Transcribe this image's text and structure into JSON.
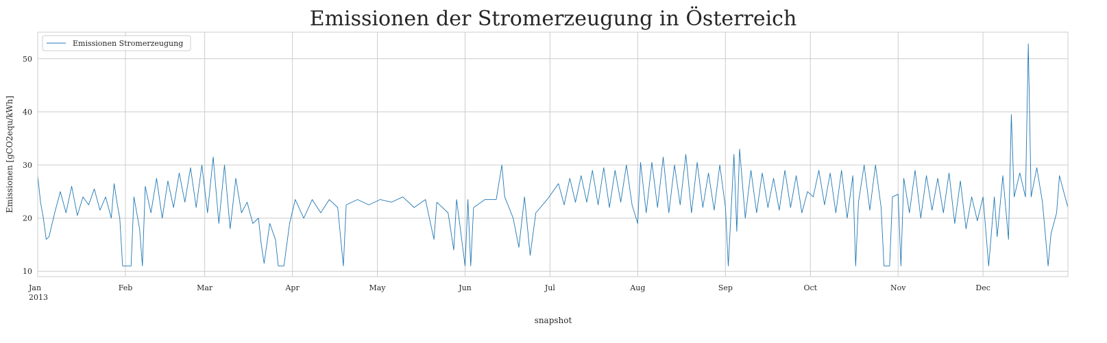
{
  "chart_data": {
    "type": "line",
    "title": "Emissionen der Stromerzeugung in Österreich",
    "xlabel": "snapshot",
    "ylabel": "Emissionen [gCO2equ/kWh]",
    "xlim": [
      "2013-01-01",
      "2013-12-31"
    ],
    "ylim": [
      9,
      55
    ],
    "yticks": [
      10,
      20,
      30,
      40,
      50
    ],
    "xticks": [
      {
        "date": "2013-01-01",
        "label": "Jan",
        "sublabel": "2013"
      },
      {
        "date": "2013-02-01",
        "label": "Feb"
      },
      {
        "date": "2013-03-01",
        "label": "Mar"
      },
      {
        "date": "2013-04-01",
        "label": "Apr"
      },
      {
        "date": "2013-05-01",
        "label": "May"
      },
      {
        "date": "2013-06-01",
        "label": "Jun"
      },
      {
        "date": "2013-07-01",
        "label": "Jul"
      },
      {
        "date": "2013-08-01",
        "label": "Aug"
      },
      {
        "date": "2013-09-01",
        "label": "Sep"
      },
      {
        "date": "2013-10-01",
        "label": "Oct"
      },
      {
        "date": "2013-11-01",
        "label": "Nov"
      },
      {
        "date": "2013-12-01",
        "label": "Dec"
      }
    ],
    "grid": true,
    "legend_position": "top-left",
    "series": [
      {
        "name": "Emissionen Stromerzeugung",
        "color": "#1f77b4",
        "points": [
          [
            "2013-01-01",
            28.0
          ],
          [
            "2013-01-02",
            23.0
          ],
          [
            "2013-01-03",
            20.0
          ],
          [
            "2013-01-04",
            16.0
          ],
          [
            "2013-01-05",
            16.5
          ],
          [
            "2013-01-07",
            21.0
          ],
          [
            "2013-01-09",
            25.0
          ],
          [
            "2013-01-11",
            21.0
          ],
          [
            "2013-01-13",
            26.0
          ],
          [
            "2013-01-15",
            20.5
          ],
          [
            "2013-01-17",
            24.0
          ],
          [
            "2013-01-19",
            22.5
          ],
          [
            "2013-01-21",
            25.5
          ],
          [
            "2013-01-23",
            21.5
          ],
          [
            "2013-01-25",
            24.0
          ],
          [
            "2013-01-27",
            20.0
          ],
          [
            "2013-01-28",
            26.5
          ],
          [
            "2013-01-29",
            23.0
          ],
          [
            "2013-01-30",
            20.0
          ],
          [
            "2013-01-31",
            11.0
          ],
          [
            "2013-02-03",
            11.0
          ],
          [
            "2013-02-04",
            24.0
          ],
          [
            "2013-02-06",
            18.0
          ],
          [
            "2013-02-07",
            11.0
          ],
          [
            "2013-02-08",
            26.0
          ],
          [
            "2013-02-10",
            21.0
          ],
          [
            "2013-02-12",
            27.5
          ],
          [
            "2013-02-14",
            20.0
          ],
          [
            "2013-02-16",
            27.0
          ],
          [
            "2013-02-18",
            22.0
          ],
          [
            "2013-02-20",
            28.5
          ],
          [
            "2013-02-22",
            23.0
          ],
          [
            "2013-02-24",
            29.5
          ],
          [
            "2013-02-26",
            22.0
          ],
          [
            "2013-02-28",
            30.0
          ],
          [
            "2013-03-02",
            21.0
          ],
          [
            "2013-03-04",
            31.5
          ],
          [
            "2013-03-06",
            19.0
          ],
          [
            "2013-03-08",
            30.0
          ],
          [
            "2013-03-10",
            18.0
          ],
          [
            "2013-03-12",
            27.5
          ],
          [
            "2013-03-14",
            21.0
          ],
          [
            "2013-03-16",
            23.0
          ],
          [
            "2013-03-18",
            19.0
          ],
          [
            "2013-03-20",
            20.0
          ],
          [
            "2013-03-21",
            15.0
          ],
          [
            "2013-03-22",
            11.5
          ],
          [
            "2013-03-24",
            19.0
          ],
          [
            "2013-03-26",
            16.0
          ],
          [
            "2013-03-27",
            11.0
          ],
          [
            "2013-03-29",
            11.0
          ],
          [
            "2013-03-31",
            19.0
          ],
          [
            "2013-04-02",
            23.5
          ],
          [
            "2013-04-05",
            20.0
          ],
          [
            "2013-04-08",
            23.5
          ],
          [
            "2013-04-11",
            21.0
          ],
          [
            "2013-04-14",
            23.5
          ],
          [
            "2013-04-17",
            22.0
          ],
          [
            "2013-04-19",
            11.0
          ],
          [
            "2013-04-20",
            22.5
          ],
          [
            "2013-04-24",
            23.5
          ],
          [
            "2013-04-28",
            22.5
          ],
          [
            "2013-05-02",
            23.5
          ],
          [
            "2013-05-06",
            23.0
          ],
          [
            "2013-05-10",
            24.0
          ],
          [
            "2013-05-14",
            22.0
          ],
          [
            "2013-05-18",
            23.5
          ],
          [
            "2013-05-21",
            16.0
          ],
          [
            "2013-05-22",
            23.0
          ],
          [
            "2013-05-26",
            21.0
          ],
          [
            "2013-05-28",
            14.0
          ],
          [
            "2013-05-29",
            23.5
          ],
          [
            "2013-06-01",
            11.0
          ],
          [
            "2013-06-02",
            23.5
          ],
          [
            "2013-06-03",
            11.0
          ],
          [
            "2013-06-04",
            22.0
          ],
          [
            "2013-06-08",
            23.5
          ],
          [
            "2013-06-12",
            23.5
          ],
          [
            "2013-06-14",
            30.0
          ],
          [
            "2013-06-15",
            24.0
          ],
          [
            "2013-06-18",
            20.0
          ],
          [
            "2013-06-20",
            14.5
          ],
          [
            "2013-06-22",
            24.0
          ],
          [
            "2013-06-24",
            13.0
          ],
          [
            "2013-06-26",
            21.0
          ],
          [
            "2013-06-30",
            23.5
          ],
          [
            "2013-07-02",
            25.0
          ],
          [
            "2013-07-04",
            26.5
          ],
          [
            "2013-07-06",
            22.5
          ],
          [
            "2013-07-08",
            27.5
          ],
          [
            "2013-07-10",
            23.0
          ],
          [
            "2013-07-12",
            28.0
          ],
          [
            "2013-07-14",
            23.0
          ],
          [
            "2013-07-16",
            29.0
          ],
          [
            "2013-07-18",
            22.5
          ],
          [
            "2013-07-20",
            29.5
          ],
          [
            "2013-07-22",
            22.0
          ],
          [
            "2013-07-24",
            29.0
          ],
          [
            "2013-07-26",
            23.0
          ],
          [
            "2013-07-28",
            30.0
          ],
          [
            "2013-07-30",
            22.5
          ],
          [
            "2013-08-01",
            19.0
          ],
          [
            "2013-08-02",
            30.5
          ],
          [
            "2013-08-04",
            21.0
          ],
          [
            "2013-08-06",
            30.5
          ],
          [
            "2013-08-08",
            22.0
          ],
          [
            "2013-08-10",
            31.5
          ],
          [
            "2013-08-12",
            21.0
          ],
          [
            "2013-08-14",
            30.0
          ],
          [
            "2013-08-16",
            22.5
          ],
          [
            "2013-08-18",
            32.0
          ],
          [
            "2013-08-20",
            21.0
          ],
          [
            "2013-08-22",
            30.5
          ],
          [
            "2013-08-24",
            22.0
          ],
          [
            "2013-08-26",
            28.5
          ],
          [
            "2013-08-28",
            21.5
          ],
          [
            "2013-08-30",
            30.0
          ],
          [
            "2013-09-01",
            22.0
          ],
          [
            "2013-09-02",
            11.0
          ],
          [
            "2013-09-04",
            32.0
          ],
          [
            "2013-09-05",
            17.5
          ],
          [
            "2013-09-06",
            33.0
          ],
          [
            "2013-09-08",
            20.0
          ],
          [
            "2013-09-10",
            29.0
          ],
          [
            "2013-09-12",
            21.0
          ],
          [
            "2013-09-14",
            28.5
          ],
          [
            "2013-09-16",
            22.0
          ],
          [
            "2013-09-18",
            27.5
          ],
          [
            "2013-09-20",
            21.5
          ],
          [
            "2013-09-22",
            29.0
          ],
          [
            "2013-09-24",
            22.0
          ],
          [
            "2013-09-26",
            28.0
          ],
          [
            "2013-09-28",
            21.0
          ],
          [
            "2013-09-30",
            25.0
          ],
          [
            "2013-10-02",
            24.0
          ],
          [
            "2013-10-04",
            29.0
          ],
          [
            "2013-10-06",
            22.5
          ],
          [
            "2013-10-08",
            28.5
          ],
          [
            "2013-10-10",
            21.0
          ],
          [
            "2013-10-12",
            29.0
          ],
          [
            "2013-10-14",
            20.0
          ],
          [
            "2013-10-16",
            28.0
          ],
          [
            "2013-10-17",
            11.0
          ],
          [
            "2013-10-18",
            23.0
          ],
          [
            "2013-10-20",
            30.0
          ],
          [
            "2013-10-22",
            21.5
          ],
          [
            "2013-10-24",
            30.0
          ],
          [
            "2013-10-26",
            22.0
          ],
          [
            "2013-10-27",
            11.0
          ],
          [
            "2013-10-29",
            11.0
          ],
          [
            "2013-10-30",
            24.0
          ],
          [
            "2013-11-01",
            24.5
          ],
          [
            "2013-11-02",
            11.0
          ],
          [
            "2013-11-03",
            27.5
          ],
          [
            "2013-11-05",
            21.0
          ],
          [
            "2013-11-07",
            29.0
          ],
          [
            "2013-11-09",
            20.0
          ],
          [
            "2013-11-11",
            28.0
          ],
          [
            "2013-11-13",
            21.5
          ],
          [
            "2013-11-15",
            27.5
          ],
          [
            "2013-11-17",
            21.0
          ],
          [
            "2013-11-19",
            28.5
          ],
          [
            "2013-11-21",
            19.0
          ],
          [
            "2013-11-23",
            27.0
          ],
          [
            "2013-11-25",
            18.0
          ],
          [
            "2013-11-27",
            24.0
          ],
          [
            "2013-11-29",
            19.5
          ],
          [
            "2013-12-01",
            24.0
          ],
          [
            "2013-12-03",
            11.0
          ],
          [
            "2013-12-05",
            24.0
          ],
          [
            "2013-12-06",
            16.5
          ],
          [
            "2013-12-08",
            28.0
          ],
          [
            "2013-12-10",
            16.0
          ],
          [
            "2013-12-11",
            39.5
          ],
          [
            "2013-12-12",
            24.0
          ],
          [
            "2013-12-14",
            28.5
          ],
          [
            "2013-12-16",
            24.0
          ],
          [
            "2013-12-17",
            52.8
          ],
          [
            "2013-12-18",
            24.0
          ],
          [
            "2013-12-20",
            29.5
          ],
          [
            "2013-12-22",
            23.0
          ],
          [
            "2013-12-24",
            11.0
          ],
          [
            "2013-12-25",
            17.0
          ],
          [
            "2013-12-27",
            21.0
          ],
          [
            "2013-12-28",
            28.0
          ],
          [
            "2013-12-30",
            24.0
          ],
          [
            "2013-12-31",
            22.0
          ]
        ]
      }
    ]
  }
}
